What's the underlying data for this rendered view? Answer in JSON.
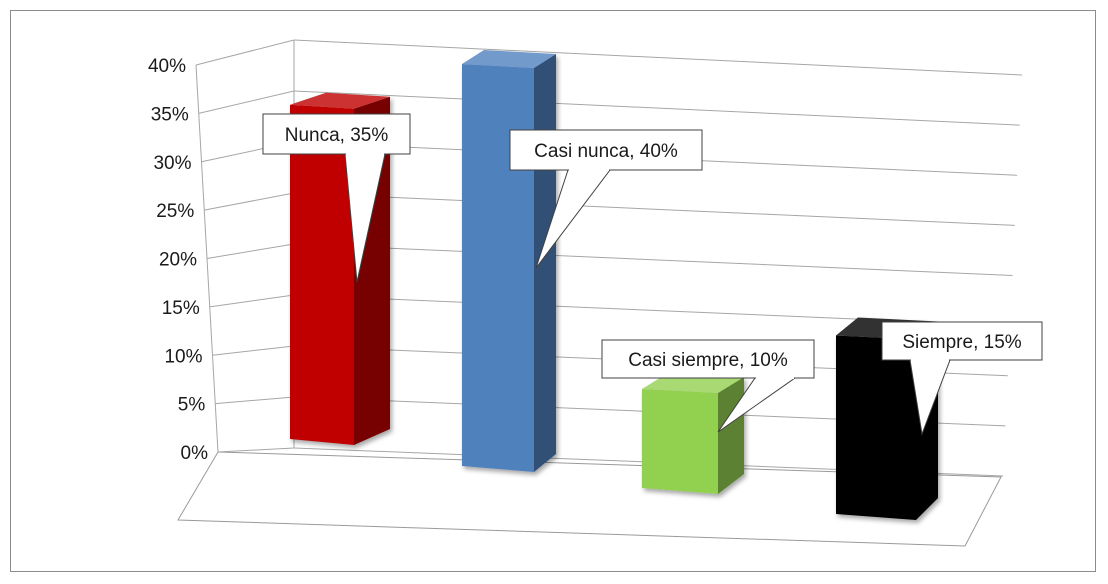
{
  "chart_data": {
    "type": "bar",
    "projection": "3d",
    "categories": [
      "Nunca",
      "Casi nunca",
      "Casi siempre",
      "Siempre"
    ],
    "values": [
      35,
      40,
      10,
      15
    ],
    "value_unit": "%",
    "ylim": [
      0,
      40
    ],
    "ytick_step": 5,
    "yticks": [
      "0%",
      "5%",
      "10%",
      "15%",
      "20%",
      "25%",
      "30%",
      "35%",
      "40%"
    ],
    "data_labels": [
      "Nunca, 35%",
      "Casi nunca, 40%",
      "Casi siempre, 10%",
      "Siempre, 15%"
    ],
    "colors": [
      "#c00000",
      "#4f81bd",
      "#92d050",
      "#000000"
    ],
    "grid": true,
    "legend": "none"
  }
}
